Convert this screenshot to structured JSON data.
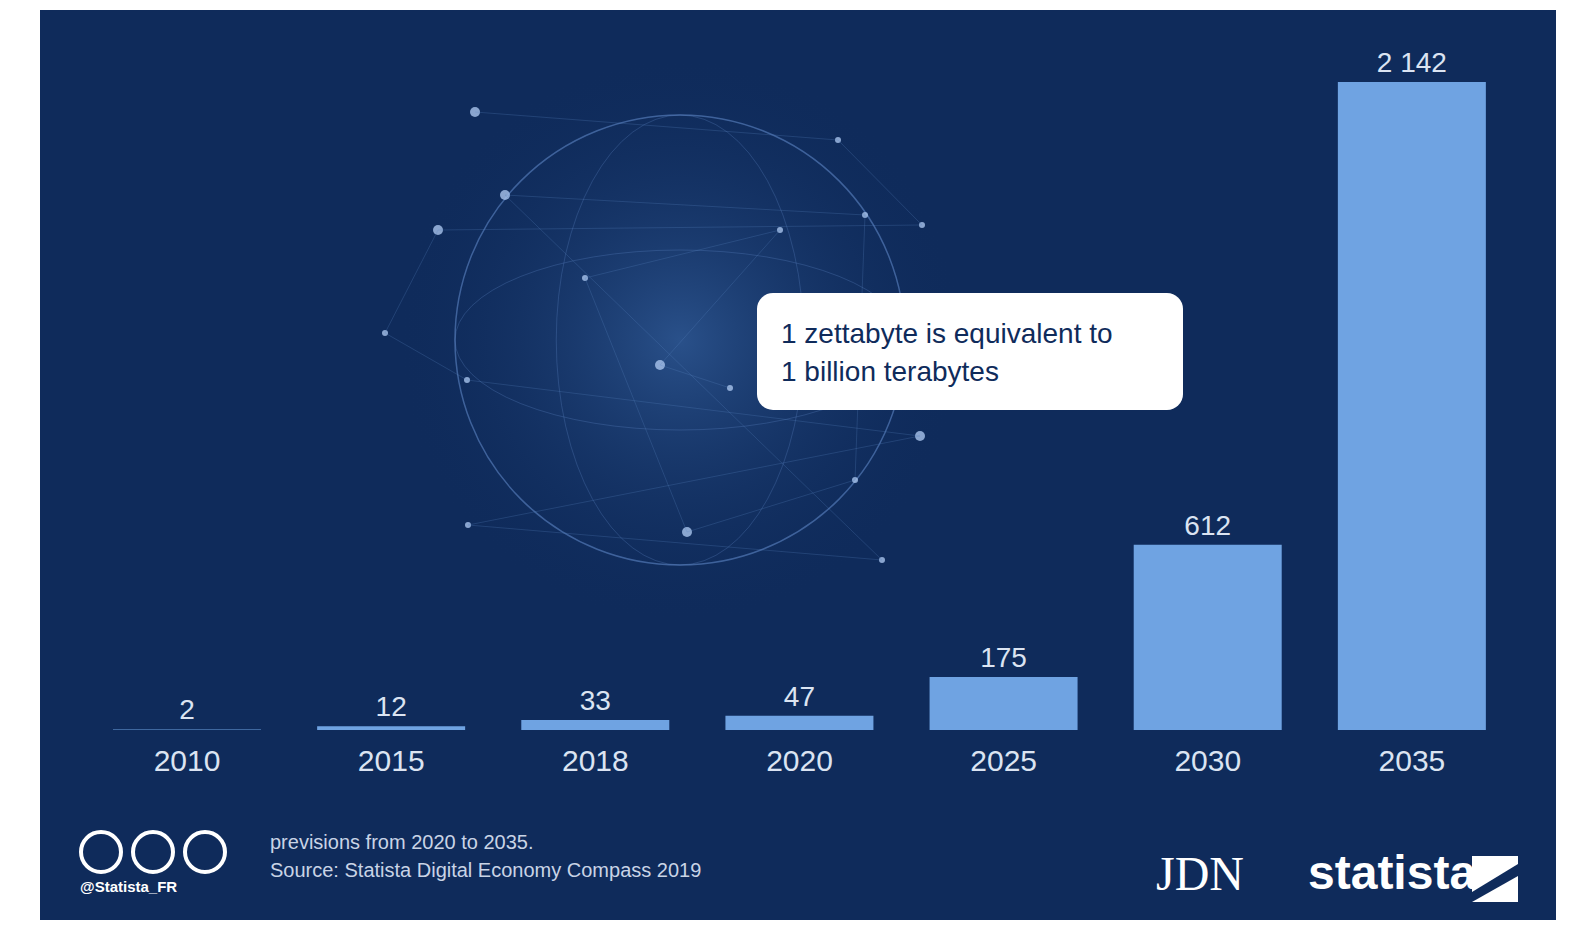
{
  "chart_data": {
    "type": "bar",
    "categories": [
      "2010",
      "2015",
      "2018",
      "2020",
      "2025",
      "2030",
      "2035"
    ],
    "values": [
      2,
      12,
      33,
      47,
      175,
      612,
      2142
    ],
    "value_labels": [
      "2",
      "12",
      "33",
      "47",
      "175",
      "612",
      "2 142"
    ],
    "color": "#6fa3e2",
    "ylim": [
      0,
      2142
    ],
    "tick_labels": "x",
    "data_labels": true,
    "grid": false,
    "annotation": [
      "1 zettabyte is equivalent to",
      "1 billion terabytes"
    ],
    "footnote": [
      "previsions from 2020 to 2035.",
      "Source: Statista Digital Economy Compass 2019"
    ],
    "logos": [
      "JDN",
      "statista"
    ],
    "handle": "@Statista_FR"
  }
}
